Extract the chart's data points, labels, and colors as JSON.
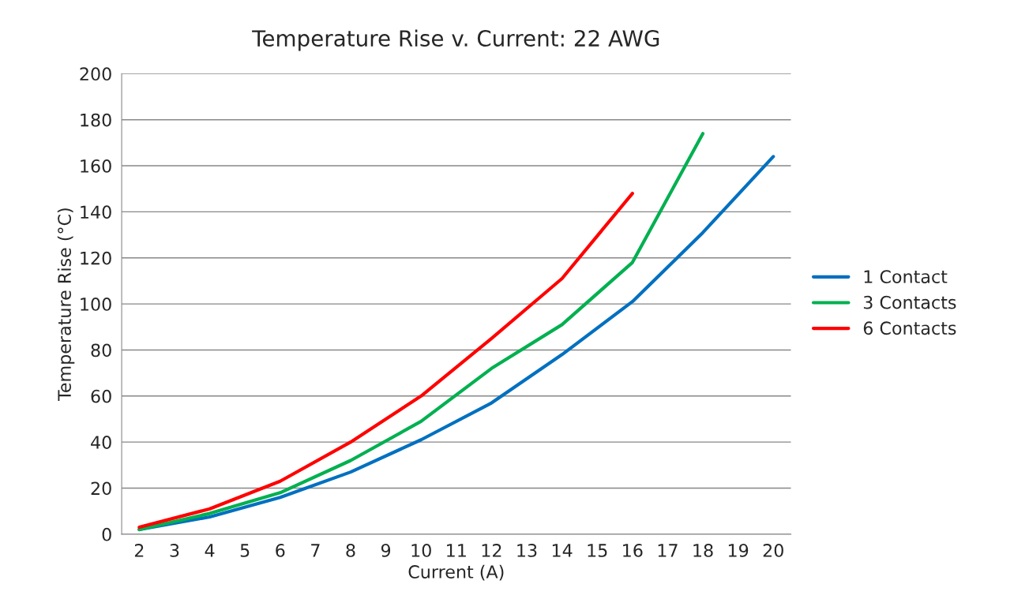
{
  "chart_data": {
    "type": "line",
    "title": "Temperature Rise v. Current: 22 AWG",
    "xlabel": "Current (A)",
    "ylabel": "Temperature Rise (°C)",
    "xlim": [
      1.5,
      20.5
    ],
    "xticks": [
      2,
      3,
      4,
      5,
      6,
      7,
      8,
      9,
      10,
      11,
      12,
      13,
      14,
      15,
      16,
      17,
      18,
      19,
      20
    ],
    "ylim": [
      0,
      200
    ],
    "yticks": [
      0,
      20,
      40,
      60,
      80,
      100,
      120,
      140,
      160,
      180,
      200
    ],
    "grid": "y",
    "legend": "right",
    "marker": "none",
    "line_style": "solid",
    "series": [
      {
        "name": "1 Contact",
        "color": "#0070c0",
        "x": [
          2,
          4,
          6,
          8,
          10,
          12,
          14,
          16,
          18,
          20
        ],
        "values": [
          2,
          7.5,
          16,
          27,
          41,
          57,
          78,
          101,
          131,
          164
        ]
      },
      {
        "name": "3 Contacts",
        "color": "#00b050",
        "x": [
          2,
          4,
          6,
          8,
          10,
          12,
          14,
          16,
          18
        ],
        "values": [
          2,
          9,
          18,
          32,
          49,
          72,
          91,
          118,
          174
        ]
      },
      {
        "name": "6 Contacts",
        "color": "#ff0000",
        "x": [
          2,
          4,
          6,
          8,
          10,
          12,
          14,
          16
        ],
        "values": [
          3,
          11,
          23,
          40,
          60,
          85,
          111,
          148
        ]
      }
    ]
  }
}
